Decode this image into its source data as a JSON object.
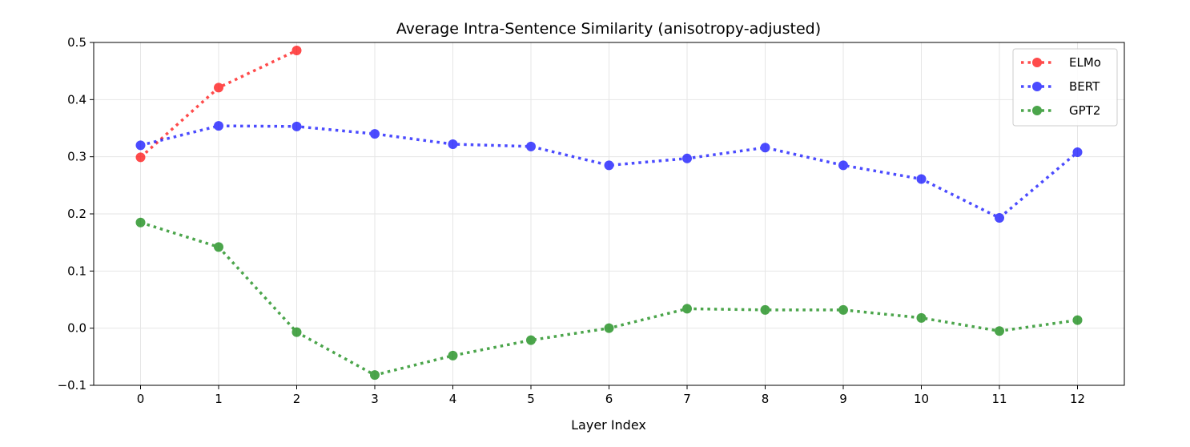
{
  "chart_data": {
    "type": "line",
    "title": "Average Intra-Sentence Similarity (anisotropy-adjusted)",
    "xlabel": "Layer Index",
    "ylabel": "",
    "xlim": [
      -0.6,
      12.6
    ],
    "ylim": [
      -0.1,
      0.5
    ],
    "x_ticks": [
      0,
      1,
      2,
      3,
      4,
      5,
      6,
      7,
      8,
      9,
      10,
      11,
      12
    ],
    "x_tick_labels": [
      "0",
      "1",
      "2",
      "3",
      "4",
      "5",
      "6",
      "7",
      "8",
      "9",
      "10",
      "11",
      "12"
    ],
    "y_ticks": [
      -0.1,
      0.0,
      0.1,
      0.2,
      0.3,
      0.4,
      0.5
    ],
    "y_tick_labels": [
      "−0.1",
      "0.0",
      "0.1",
      "0.2",
      "0.3",
      "0.4",
      "0.5"
    ],
    "grid": true,
    "legend_position": "top-right",
    "series": [
      {
        "name": "ELMo",
        "color": "#ff0000",
        "x": [
          0,
          1,
          2
        ],
        "values": [
          0.299,
          0.421,
          0.486
        ]
      },
      {
        "name": "BERT",
        "color": "#0000ff",
        "x": [
          0,
          1,
          2,
          3,
          4,
          5,
          6,
          7,
          8,
          9,
          10,
          11,
          12
        ],
        "values": [
          0.32,
          0.354,
          0.353,
          0.34,
          0.322,
          0.318,
          0.285,
          0.297,
          0.316,
          0.285,
          0.261,
          0.193,
          0.308
        ]
      },
      {
        "name": "GPT2",
        "color": "#008000",
        "x": [
          0,
          1,
          2,
          3,
          4,
          5,
          6,
          7,
          8,
          9,
          10,
          11,
          12
        ],
        "values": [
          0.185,
          0.142,
          -0.007,
          -0.082,
          -0.048,
          -0.021,
          0.0,
          0.034,
          0.032,
          0.032,
          0.018,
          -0.005,
          0.014
        ]
      }
    ]
  }
}
